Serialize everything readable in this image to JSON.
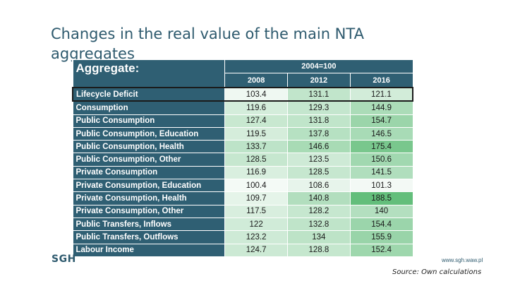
{
  "title": "Changes in the real value of the main NTA aggregates",
  "table": {
    "header_label": "Aggregate:",
    "group_label": "2004=100",
    "years": [
      "2008",
      "2012",
      "2016"
    ],
    "rows": [
      {
        "label": "Lifecycle Deficit",
        "values": [
          "103.4",
          "131.1",
          "121.1"
        ],
        "highlighted": true
      },
      {
        "label": "Consumption",
        "values": [
          "119.6",
          "129.3",
          "144.9"
        ]
      },
      {
        "label": "Public Consumption",
        "values": [
          "127.4",
          "131.8",
          "154.7"
        ]
      },
      {
        "label": "Public Consumption, Education",
        "values": [
          "119.5",
          "137.8",
          "146.5"
        ]
      },
      {
        "label": "Public Consumption, Health",
        "values": [
          "133.7",
          "146.6",
          "175.4"
        ]
      },
      {
        "label": "Public Consumption, Other",
        "values": [
          "128.5",
          "123.5",
          "150.6"
        ]
      },
      {
        "label": "Private Consumption",
        "values": [
          "116.9",
          "128.5",
          "141.5"
        ]
      },
      {
        "label": "Private Consumption, Education",
        "values": [
          "100.4",
          "108.6",
          "101.3"
        ]
      },
      {
        "label": "Private Consumption, Health",
        "values": [
          "109.7",
          "140.8",
          "188.5"
        ]
      },
      {
        "label": "Private Consumption, Other",
        "values": [
          "117.5",
          "128.2",
          "140"
        ]
      },
      {
        "label": "Public Transfers, Inflows",
        "values": [
          "122",
          "132.8",
          "154.4"
        ]
      },
      {
        "label": "Public Transfers, Outflows",
        "values": [
          "123.2",
          "134",
          "155.9"
        ]
      },
      {
        "label": "Labour Income",
        "values": [
          "124.7",
          "128.8",
          "152.4"
        ]
      }
    ]
  },
  "logo_text": "SGH",
  "website": "www.sgh.waw.pl",
  "source": "Source: Own calculations",
  "colors": {
    "header_bg": "#2f5f73",
    "title": "#2e5a6e",
    "scale_low": "#f4faf6",
    "scale_high": "#63be7b"
  }
}
